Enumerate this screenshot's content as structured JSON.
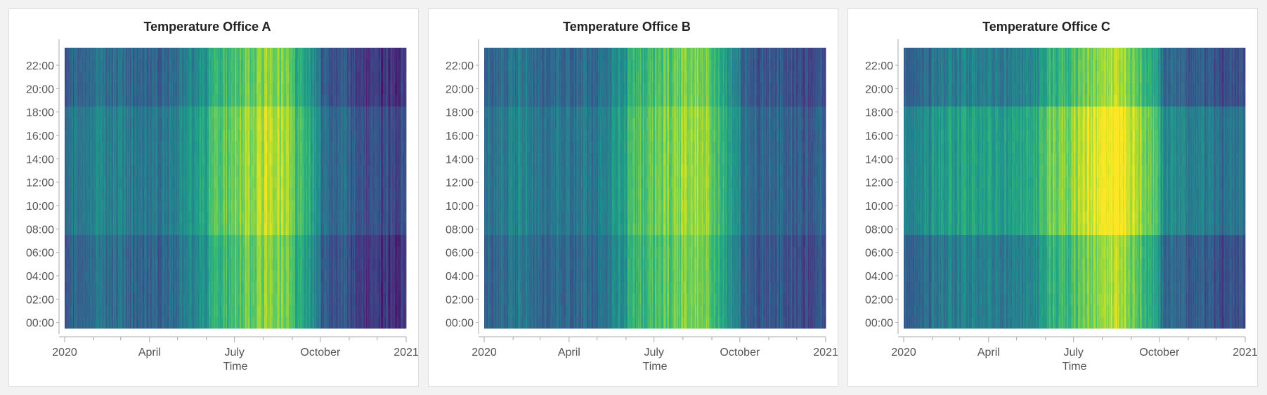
{
  "chart_data": [
    {
      "type": "heatmap",
      "title": "Temperature Office A",
      "xlabel": "Time",
      "ylabel": "",
      "x_range": [
        "2020-01-01",
        "2021-01-01"
      ],
      "y_range": [
        "00:00",
        "23:00"
      ],
      "x_tick_labels": [
        "2020",
        "April",
        "July",
        "October",
        "2021"
      ],
      "y_tick_labels": [
        "00:00",
        "02:00",
        "04:00",
        "06:00",
        "08:00",
        "10:00",
        "12:00",
        "14:00",
        "16:00",
        "18:00",
        "20:00",
        "22:00"
      ],
      "colorscale": "viridis",
      "seasonal_profile": [
        {
          "month": "2020-01",
          "value": 0.3
        },
        {
          "month": "2020-02",
          "value": 0.36
        },
        {
          "month": "2020-03",
          "value": 0.33
        },
        {
          "month": "2020-04",
          "value": 0.31
        },
        {
          "month": "2020-05",
          "value": 0.36
        },
        {
          "month": "2020-06",
          "value": 0.62
        },
        {
          "month": "2020-07",
          "value": 0.72
        },
        {
          "month": "2020-08",
          "value": 0.86
        },
        {
          "month": "2020-09",
          "value": 0.66
        },
        {
          "month": "2020-10",
          "value": 0.28
        },
        {
          "month": "2020-11",
          "value": 0.22
        },
        {
          "month": "2020-12",
          "value": 0.14
        }
      ],
      "daytime_boost": 0.08
    },
    {
      "type": "heatmap",
      "title": "Temperature Office B",
      "xlabel": "Time",
      "ylabel": "",
      "x_range": [
        "2020-01-01",
        "2021-01-01"
      ],
      "y_range": [
        "00:00",
        "23:00"
      ],
      "x_tick_labels": [
        "2020",
        "April",
        "July",
        "October",
        "2021"
      ],
      "y_tick_labels": [
        "00:00",
        "02:00",
        "04:00",
        "06:00",
        "08:00",
        "10:00",
        "12:00",
        "14:00",
        "16:00",
        "18:00",
        "20:00",
        "22:00"
      ],
      "colorscale": "viridis",
      "seasonal_profile": [
        {
          "month": "2020-01",
          "value": 0.32
        },
        {
          "month": "2020-02",
          "value": 0.38
        },
        {
          "month": "2020-03",
          "value": 0.34
        },
        {
          "month": "2020-04",
          "value": 0.33
        },
        {
          "month": "2020-05",
          "value": 0.38
        },
        {
          "month": "2020-06",
          "value": 0.62
        },
        {
          "month": "2020-07",
          "value": 0.7
        },
        {
          "month": "2020-08",
          "value": 0.84
        },
        {
          "month": "2020-09",
          "value": 0.66
        },
        {
          "month": "2020-10",
          "value": 0.3
        },
        {
          "month": "2020-11",
          "value": 0.27
        },
        {
          "month": "2020-12",
          "value": 0.25
        }
      ],
      "daytime_boost": 0.06
    },
    {
      "type": "heatmap",
      "title": "Temperature Office C",
      "xlabel": "Time",
      "ylabel": "",
      "x_range": [
        "2020-01-01",
        "2021-01-01"
      ],
      "y_range": [
        "00:00",
        "23:00"
      ],
      "x_tick_labels": [
        "2020",
        "April",
        "July",
        "October",
        "2021"
      ],
      "y_tick_labels": [
        "00:00",
        "02:00",
        "04:00",
        "06:00",
        "08:00",
        "10:00",
        "12:00",
        "14:00",
        "16:00",
        "18:00",
        "20:00",
        "22:00"
      ],
      "colorscale": "viridis",
      "seasonal_profile": [
        {
          "month": "2020-01",
          "value": 0.3
        },
        {
          "month": "2020-02",
          "value": 0.4
        },
        {
          "month": "2020-03",
          "value": 0.45
        },
        {
          "month": "2020-04",
          "value": 0.4
        },
        {
          "month": "2020-05",
          "value": 0.42
        },
        {
          "month": "2020-06",
          "value": 0.64
        },
        {
          "month": "2020-07",
          "value": 0.72
        },
        {
          "month": "2020-08",
          "value": 0.9
        },
        {
          "month": "2020-09",
          "value": 0.76
        },
        {
          "month": "2020-10",
          "value": 0.38
        },
        {
          "month": "2020-11",
          "value": 0.3
        },
        {
          "month": "2020-12",
          "value": 0.24
        }
      ],
      "daytime_boost": 0.14
    }
  ]
}
